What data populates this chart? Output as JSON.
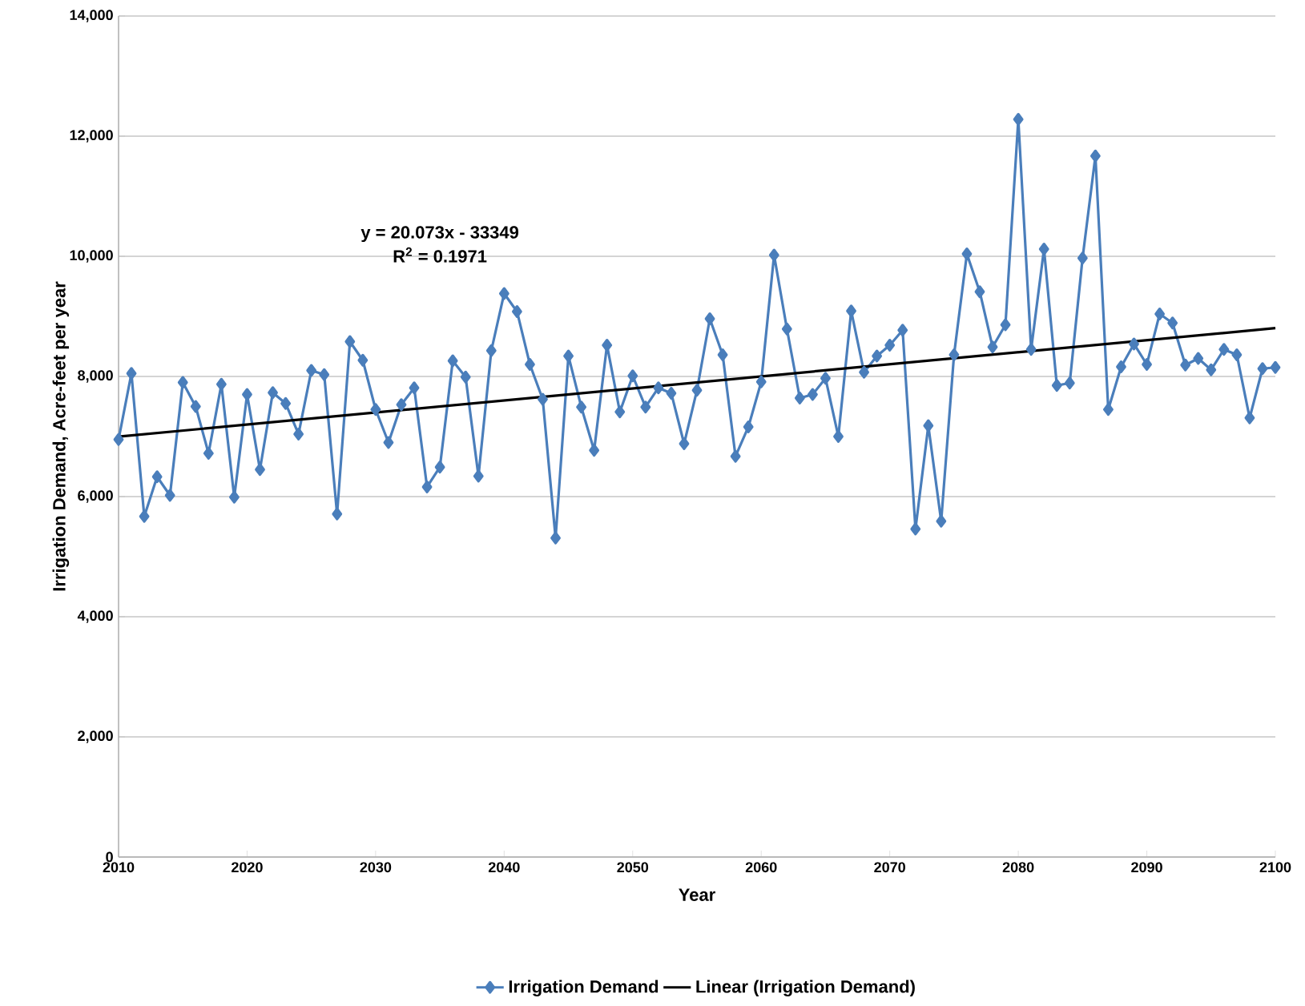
{
  "chart_data": {
    "type": "line",
    "xlabel": "Year",
    "ylabel": "Irrigation Demand, Acre-feet per year",
    "annotations": [
      "y = 20.073x - 33349",
      "R$^{2}$ = 0.1971"
    ],
    "xlim": [
      2010,
      2100
    ],
    "xticks": [
      2010,
      2020,
      2030,
      2040,
      2050,
      2060,
      2070,
      2080,
      2090,
      2100
    ],
    "ylim": [
      0,
      14000
    ],
    "yticks": [
      0,
      {
        "value": 2000,
        "label": "2,000"
      },
      {
        "value": 4000,
        "label": "4,000"
      },
      {
        "value": 6000,
        "label": "6,000"
      },
      {
        "value": 8000,
        "label": "8,000"
      },
      {
        "value": 10000,
        "label": "10,000"
      },
      {
        "value": 12000,
        "label": "12,000"
      },
      {
        "value": 14000,
        "label": "14,000"
      }
    ],
    "grid": "y",
    "legend": "bottom",
    "x": [
      2010,
      2011,
      2012,
      2013,
      2014,
      2015,
      2016,
      2017,
      2018,
      2019,
      2020,
      2021,
      2022,
      2023,
      2024,
      2025,
      2026,
      2027,
      2028,
      2029,
      2030,
      2031,
      2032,
      2033,
      2034,
      2035,
      2036,
      2037,
      2038,
      2039,
      2040,
      2041,
      2042,
      2043,
      2044,
      2045,
      2046,
      2047,
      2048,
      2049,
      2050,
      2051,
      2052,
      2053,
      2054,
      2055,
      2056,
      2057,
      2058,
      2059,
      2060,
      2061,
      2062,
      2063,
      2064,
      2065,
      2066,
      2067,
      2068,
      2069,
      2070,
      2071,
      2072,
      2073,
      2074,
      2075,
      2076,
      2077,
      2078,
      2079,
      2080,
      2081,
      2082,
      2083,
      2084,
      2085,
      2086,
      2087,
      2088,
      2089,
      2090,
      2091,
      2092,
      2093,
      2094,
      2095,
      2096,
      2097,
      2098,
      2099,
      2100
    ],
    "series": [
      {
        "name": "Irrigation Demand",
        "color": "#4a7ebb",
        "marker": "diamond",
        "values": [
          6950,
          8050,
          5670,
          6330,
          6020,
          7900,
          7500,
          6720,
          7870,
          5990,
          7700,
          6450,
          7730,
          7550,
          7040,
          8100,
          8030,
          5710,
          8580,
          8270,
          7450,
          6900,
          7530,
          7810,
          6160,
          6490,
          8260,
          7990,
          6340,
          8430,
          9380,
          9080,
          8200,
          7620,
          5310,
          8340,
          7490,
          6770,
          8520,
          7410,
          8010,
          7490,
          7810,
          7720,
          6880,
          7770,
          8960,
          8360,
          6670,
          7160,
          7910,
          10020,
          8790,
          7640,
          7700,
          7970,
          7000,
          9090,
          8070,
          8340,
          8520,
          8770,
          5460,
          7180,
          5590,
          8360,
          10040,
          9410,
          8490,
          8860,
          12280,
          8450,
          10120,
          7850,
          7890,
          9970,
          11670,
          7450,
          8160,
          8540,
          8200,
          9040,
          8890,
          8190,
          8300,
          8110,
          8450,
          8360,
          7310,
          8130,
          8150
        ]
      },
      {
        "name": "Linear (Irrigation Demand)",
        "color": "#000000",
        "marker": "none",
        "x": [
          2010,
          2100
        ],
        "values": [
          6998,
          8804
        ]
      }
    ]
  }
}
